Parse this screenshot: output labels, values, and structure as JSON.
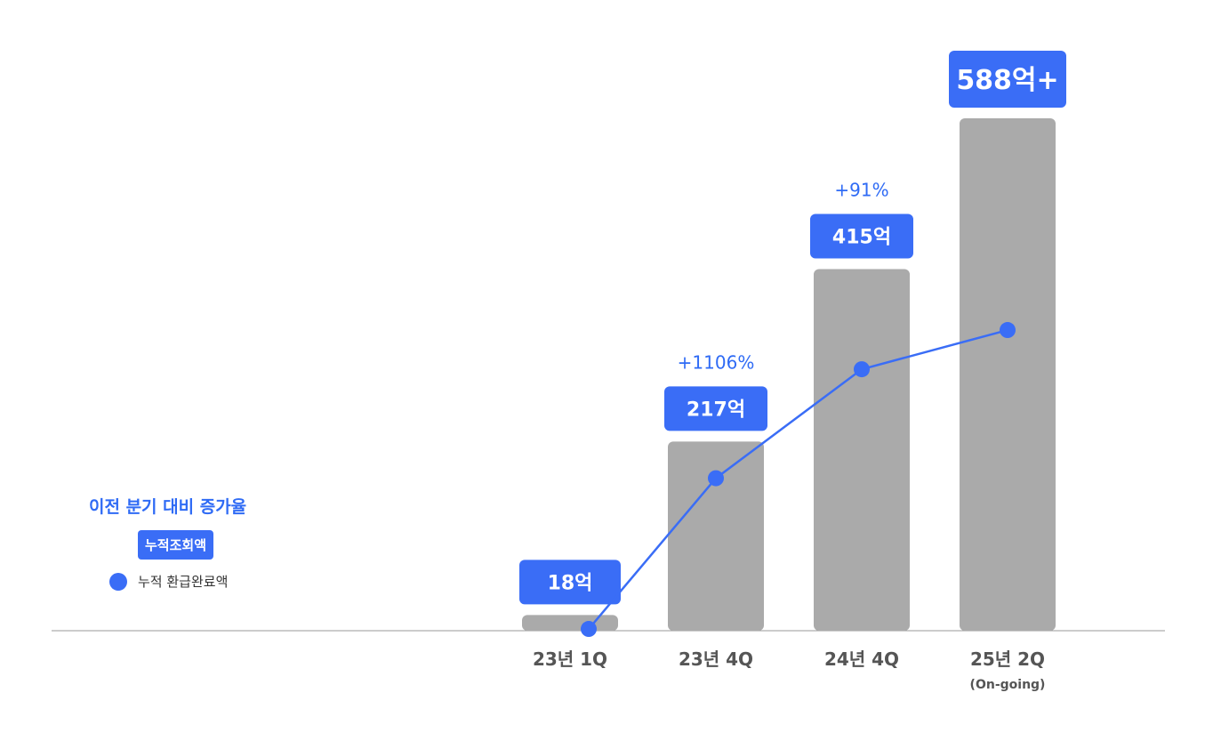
{
  "chart_data": {
    "type": "bar",
    "categories": [
      "23년 1Q",
      "23년 4Q",
      "24년 4Q",
      "25년 2Q"
    ],
    "category_sublabels": [
      "",
      "",
      "",
      "(On-going)"
    ],
    "bar_series": {
      "name": "누적조회액",
      "values": [
        18,
        217,
        415,
        588
      ],
      "value_labels": [
        "18억",
        "217억",
        "415억",
        "588억+"
      ]
    },
    "line_series": {
      "name": "누적 환급완료액",
      "values": [
        2,
        175,
        300,
        345
      ]
    },
    "growth_labels": [
      "",
      "+1106%",
      "+91%",
      ""
    ],
    "ylim": [
      0,
      620
    ],
    "grid": false
  },
  "legend": {
    "title": "이전 분기 대비 증가율",
    "bar_label": "누적조회액",
    "line_label": "누적 환급완료액"
  },
  "colors": {
    "bar": "#aaaaaa",
    "accent": "#3a6df6",
    "growth_text": "#2f6bf5",
    "axis_text": "#555555",
    "baseline": "#999999"
  }
}
